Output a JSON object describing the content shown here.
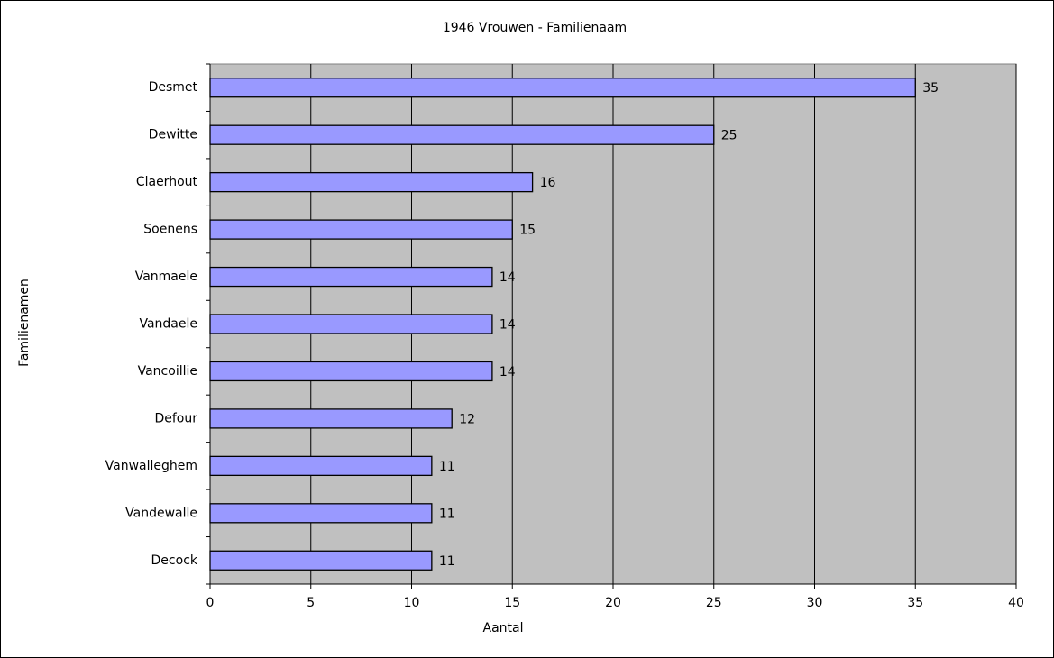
{
  "chart_data": {
    "type": "bar",
    "orientation": "horizontal",
    "title": "1946 Vrouwen - Familienaam",
    "x_label": "Aantal",
    "y_label": "Familienamen",
    "categories": [
      "Desmet",
      "Dewitte",
      "Claerhout",
      "Soenens",
      "Vanmaele",
      "Vandaele",
      "Vancoillie",
      "Defour",
      "Vanwalleghem",
      "Vandewalle",
      "Decock"
    ],
    "values": [
      35,
      25,
      16,
      15,
      14,
      14,
      14,
      12,
      11,
      11,
      11
    ],
    "color": "#9999ff",
    "plot_background": "#c0c0c0",
    "xlim": [
      0,
      40
    ],
    "xticks": [
      0,
      5,
      10,
      15,
      20,
      25,
      30,
      35,
      40
    ],
    "grid": true
  }
}
